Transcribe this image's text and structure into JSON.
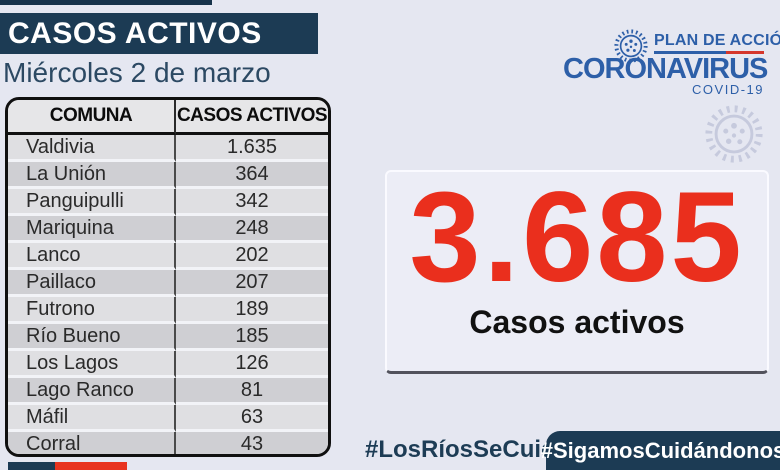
{
  "header": {
    "title": "CASOS ACTIVOS",
    "date": "Miércoles 2 de marzo"
  },
  "table": {
    "headers": [
      "COMUNA",
      "CASOS ACTIVOS"
    ],
    "rows": [
      {
        "comuna": "Valdivia",
        "casos": "1.635"
      },
      {
        "comuna": "La Unión",
        "casos": "364"
      },
      {
        "comuna": "Panguipulli",
        "casos": "342"
      },
      {
        "comuna": "Mariquina",
        "casos": "248"
      },
      {
        "comuna": "Lanco",
        "casos": "202"
      },
      {
        "comuna": "Paillaco",
        "casos": "207"
      },
      {
        "comuna": "Futrono",
        "casos": "189"
      },
      {
        "comuna": "Río Bueno",
        "casos": "185"
      },
      {
        "comuna": "Los Lagos",
        "casos": "126"
      },
      {
        "comuna": "Lago Ranco",
        "casos": "81"
      },
      {
        "comuna": "Máfil",
        "casos": "63"
      },
      {
        "comuna": "Corral",
        "casos": "43"
      }
    ]
  },
  "summary": {
    "total": "3.685",
    "label": "Casos activos"
  },
  "logo": {
    "plan": "PLAN DE ACCIÓN",
    "name": "CORONAVIRUS",
    "covid": "COVID-19"
  },
  "footer": {
    "hashtag_left": "#LosRíosSeCuida",
    "hashtag_right": "#SigamosCuidándonos"
  },
  "icons": {
    "logo_icon": "virus-icon",
    "watermark_icon": "virus-watermark-icon"
  },
  "colors": {
    "background": "#e5e7f1",
    "navy": "#1c3b54",
    "red_accent": "#e8331f",
    "total_red": "#ea2f1d",
    "logo_blue": "#2d5fa8",
    "watermark": "#c6cadd",
    "row_light": "#dfdfe2",
    "row_dark": "#cfcfd3"
  }
}
